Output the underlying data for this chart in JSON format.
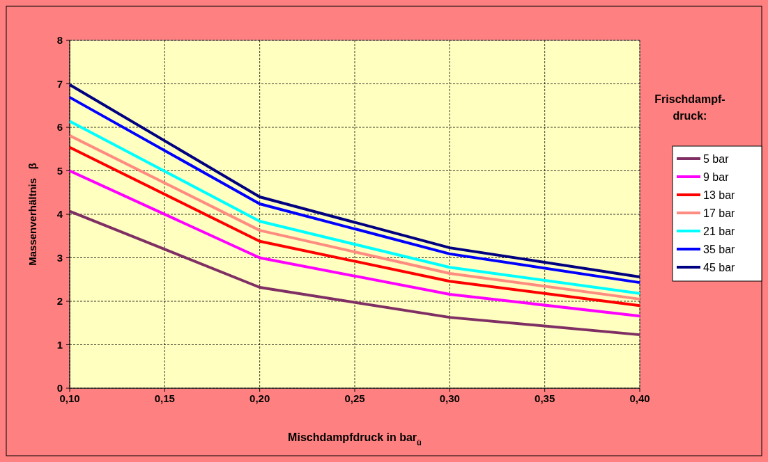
{
  "chart_data": {
    "type": "line",
    "xlabel": "Mischdampfdruck in bar$_{ü}$",
    "ylabel": "Massenverhältnis   β",
    "legend_title": "Frischdampf-druck:",
    "x": [
      0.1,
      0.2,
      0.3,
      0.4
    ],
    "xlim": [
      0.1,
      0.4
    ],
    "xticks": [
      {
        "value": 0.1,
        "label": "0,10"
      },
      {
        "value": 0.15,
        "label": "0,15"
      },
      {
        "value": 0.2,
        "label": "0,20"
      },
      {
        "value": 0.25,
        "label": "0,25"
      },
      {
        "value": 0.3,
        "label": "0,30"
      },
      {
        "value": 0.35,
        "label": "0,35"
      },
      {
        "value": 0.4,
        "label": "0,40"
      }
    ],
    "ylim": [
      0,
      8
    ],
    "yticks": [
      0,
      1,
      2,
      3,
      4,
      5,
      6,
      7,
      8
    ],
    "grid": true,
    "legend": "right",
    "marker": "none",
    "line_style": "solid",
    "series": [
      {
        "name": "5 bar",
        "color": "#7f2f64",
        "values": [
          4.07,
          2.32,
          1.63,
          1.23
        ]
      },
      {
        "name": "9 bar",
        "color": "#ff00ff",
        "values": [
          5.0,
          3.0,
          2.16,
          1.66
        ]
      },
      {
        "name": "13 bar",
        "color": "#ff0000",
        "values": [
          5.54,
          3.38,
          2.46,
          1.9
        ]
      },
      {
        "name": "17 bar",
        "color": "#ff8c80",
        "values": [
          5.81,
          3.63,
          2.64,
          2.05
        ]
      },
      {
        "name": "21 bar",
        "color": "#00ffff",
        "values": [
          6.14,
          3.84,
          2.78,
          2.18
        ]
      },
      {
        "name": "35 bar",
        "color": "#0000ff",
        "values": [
          6.69,
          4.24,
          3.09,
          2.43
        ]
      },
      {
        "name": "45 bar",
        "color": "#000080",
        "values": [
          6.98,
          4.4,
          3.23,
          2.56
        ]
      }
    ]
  }
}
